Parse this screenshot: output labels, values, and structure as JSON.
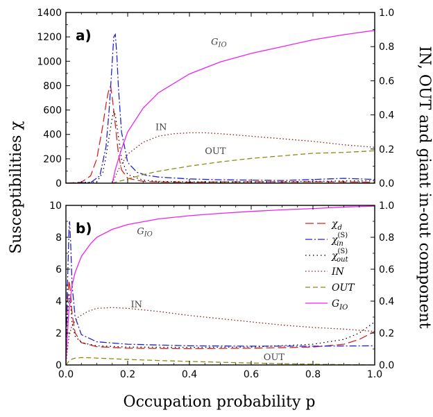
{
  "chart_data": [
    {
      "type": "line",
      "panel_label": "a)",
      "xlim": [
        0,
        1
      ],
      "ylim": [
        0,
        1400
      ],
      "y2lim": [
        0,
        1
      ],
      "grid": false,
      "x_ticks": [
        "0.0",
        "0.2",
        "0.4",
        "0.6",
        "0.8",
        "1.0"
      ],
      "y_ticks": [
        "0",
        "200",
        "400",
        "600",
        "800",
        "1000",
        "1200",
        "1400"
      ],
      "y2_ticks": [
        "0.0",
        "0.2",
        "0.4",
        "0.6",
        "0.8",
        "1.0"
      ],
      "annotations": [
        {
          "text": "G",
          "sub": "IO",
          "x": 0.47,
          "y": 0.81
        },
        {
          "text": "IN",
          "x": 0.29,
          "y": 0.31
        },
        {
          "text": "OUT",
          "x": 0.45,
          "y": 0.17
        }
      ],
      "series": [
        {
          "key": "chi_d",
          "axis": "left",
          "color": "#d62020",
          "dash": "12,5",
          "x": [
            0,
            0.05,
            0.08,
            0.1,
            0.12,
            0.13,
            0.14,
            0.145,
            0.15,
            0.16,
            0.17,
            0.18,
            0.2,
            0.25,
            0.3,
            0.4,
            0.5,
            0.6,
            0.7,
            0.8,
            0.9,
            1.0
          ],
          "y": [
            0,
            8,
            60,
            200,
            480,
            650,
            780,
            795,
            700,
            480,
            240,
            110,
            40,
            15,
            10,
            8,
            10,
            12,
            10,
            12,
            10,
            8
          ]
        },
        {
          "key": "chi_in",
          "axis": "left",
          "color": "#2020d0",
          "dash": "10,3,2,3",
          "x": [
            0,
            0.08,
            0.11,
            0.13,
            0.14,
            0.15,
            0.155,
            0.16,
            0.165,
            0.17,
            0.18,
            0.2,
            0.23,
            0.26,
            0.3,
            0.4,
            0.5,
            0.6,
            0.7,
            0.8,
            0.9,
            1.0
          ],
          "y": [
            0,
            5,
            60,
            300,
            600,
            1000,
            1200,
            1220,
            1050,
            780,
            420,
            170,
            90,
            65,
            50,
            35,
            28,
            25,
            22,
            30,
            40,
            30
          ]
        },
        {
          "key": "chi_out",
          "axis": "left",
          "color": "#000000",
          "dash": "1.5,4",
          "x": [
            0,
            0.1,
            0.12,
            0.13,
            0.14,
            0.15,
            0.155,
            0.16,
            0.17,
            0.18,
            0.2,
            0.25,
            0.3,
            0.4,
            0.5,
            0.6,
            0.7,
            0.8,
            0.9,
            1.0
          ],
          "y": [
            0,
            10,
            90,
            220,
            380,
            540,
            590,
            560,
            380,
            200,
            70,
            25,
            15,
            10,
            10,
            10,
            12,
            15,
            18,
            20
          ]
        },
        {
          "key": "IN",
          "axis": "right",
          "color": "#8b1a1a",
          "dash": "1.5,3",
          "x": [
            0.15,
            0.17,
            0.2,
            0.25,
            0.3,
            0.35,
            0.4,
            0.45,
            0.5,
            0.6,
            0.7,
            0.8,
            0.9,
            1.0
          ],
          "y": [
            0.0,
            0.08,
            0.17,
            0.24,
            0.275,
            0.29,
            0.295,
            0.295,
            0.29,
            0.275,
            0.26,
            0.245,
            0.225,
            0.21
          ]
        },
        {
          "key": "OUT",
          "axis": "right",
          "color": "#8a8a10",
          "dash": "7,4",
          "x": [
            0.15,
            0.2,
            0.25,
            0.3,
            0.4,
            0.5,
            0.6,
            0.7,
            0.8,
            0.9,
            1.0
          ],
          "y": [
            0.0,
            0.025,
            0.05,
            0.07,
            0.1,
            0.125,
            0.145,
            0.16,
            0.175,
            0.18,
            0.19
          ]
        },
        {
          "key": "G_IO",
          "axis": "right",
          "color": "#ee22ee",
          "dash": "",
          "x": [
            0.15,
            0.16,
            0.18,
            0.2,
            0.25,
            0.3,
            0.4,
            0.5,
            0.6,
            0.7,
            0.8,
            0.9,
            1.0
          ],
          "y": [
            0.0,
            0.08,
            0.2,
            0.3,
            0.44,
            0.53,
            0.64,
            0.71,
            0.76,
            0.8,
            0.84,
            0.87,
            0.895
          ]
        }
      ]
    },
    {
      "type": "line",
      "panel_label": "b)",
      "xlim": [
        0,
        1
      ],
      "ylim": [
        0,
        10
      ],
      "y2lim": [
        0,
        1
      ],
      "grid": false,
      "x_ticks": [
        "0.0",
        "0.2",
        "0.4",
        "0.6",
        "0.8",
        "1.0"
      ],
      "y_ticks": [
        "0",
        "2",
        "4",
        "6",
        "8",
        "10"
      ],
      "y2_ticks": [
        "0.0",
        "0.2",
        "0.4",
        "0.6",
        "0.8",
        "1.0"
      ],
      "annotations": [
        {
          "text": "G",
          "sub": "IO",
          "x": 0.23,
          "y": 0.82
        },
        {
          "text": "IN",
          "x": 0.21,
          "y": 0.36
        },
        {
          "text": "OUT",
          "x": 0.64,
          "y": 0.03
        }
      ],
      "legend": {
        "position": "top-right",
        "entries": [
          {
            "key": "chi_d",
            "label": "χ",
            "sub": "d",
            "sup": ""
          },
          {
            "key": "chi_in",
            "label": "χ",
            "sub": "in",
            "sup": "(S)"
          },
          {
            "key": "chi_out",
            "label": "χ",
            "sub": "out",
            "sup": "(S)"
          },
          {
            "key": "IN",
            "label": "IN",
            "sub": "",
            "sup": ""
          },
          {
            "key": "OUT",
            "label": "OUT",
            "sub": "",
            "sup": ""
          },
          {
            "key": "G_IO",
            "label": "G",
            "sub": "IO",
            "sup": ""
          }
        ]
      },
      "series": [
        {
          "key": "chi_d",
          "axis": "left",
          "color": "#d62020",
          "dash": "12,5",
          "x": [
            0,
            0.005,
            0.01,
            0.015,
            0.02,
            0.03,
            0.05,
            0.1,
            0.2,
            0.4,
            0.6,
            0.8,
            0.9,
            0.95,
            1.0
          ],
          "y": [
            1.0,
            4.0,
            5.3,
            4.5,
            3.2,
            2.0,
            1.4,
            1.15,
            1.05,
            1.02,
            1.05,
            1.12,
            1.3,
            1.6,
            2.1
          ]
        },
        {
          "key": "chi_in",
          "axis": "left",
          "color": "#2020d0",
          "dash": "10,3,2,3",
          "x": [
            0,
            0.005,
            0.01,
            0.012,
            0.015,
            0.02,
            0.03,
            0.05,
            0.1,
            0.2,
            0.4,
            0.6,
            0.8,
            1.0
          ],
          "y": [
            1.0,
            5.0,
            8.6,
            9.0,
            7.8,
            5.0,
            3.0,
            1.9,
            1.45,
            1.3,
            1.2,
            1.18,
            1.18,
            1.2
          ]
        },
        {
          "key": "chi_out",
          "axis": "left",
          "color": "#000000",
          "dash": "1.5,4",
          "x": [
            0,
            0.005,
            0.01,
            0.015,
            0.02,
            0.03,
            0.05,
            0.1,
            0.2,
            0.4,
            0.6,
            0.8,
            0.9,
            0.95,
            1.0
          ],
          "y": [
            1.0,
            3.0,
            4.5,
            3.8,
            2.6,
            1.8,
            1.4,
            1.2,
            1.12,
            1.1,
            1.12,
            1.3,
            1.6,
            2.0,
            2.7
          ]
        },
        {
          "key": "IN",
          "axis": "right",
          "color": "#8b1a1a",
          "dash": "1.5,3",
          "x": [
            0,
            0.005,
            0.01,
            0.02,
            0.04,
            0.07,
            0.1,
            0.15,
            0.2,
            0.3,
            0.4,
            0.5,
            0.6,
            0.7,
            0.8,
            0.9,
            1.0
          ],
          "y": [
            0.0,
            0.1,
            0.18,
            0.25,
            0.3,
            0.335,
            0.355,
            0.36,
            0.355,
            0.335,
            0.31,
            0.29,
            0.27,
            0.25,
            0.235,
            0.225,
            0.21
          ]
        },
        {
          "key": "OUT",
          "axis": "right",
          "color": "#8a8a10",
          "dash": "7,4",
          "x": [
            0,
            0.01,
            0.02,
            0.03,
            0.05,
            0.08,
            0.1,
            0.2,
            0.3,
            0.4,
            0.5,
            0.6,
            0.7,
            0.8,
            0.9,
            1.0
          ],
          "y": [
            0.0,
            0.025,
            0.037,
            0.043,
            0.046,
            0.045,
            0.043,
            0.035,
            0.028,
            0.022,
            0.017,
            0.012,
            0.008,
            0.005,
            0.002,
            0.0
          ]
        },
        {
          "key": "G_IO",
          "axis": "right",
          "color": "#ee22ee",
          "dash": "",
          "x": [
            0,
            0.005,
            0.01,
            0.02,
            0.03,
            0.05,
            0.08,
            0.1,
            0.15,
            0.2,
            0.3,
            0.4,
            0.5,
            0.6,
            0.7,
            0.8,
            0.9,
            1.0
          ],
          "y": [
            0.0,
            0.2,
            0.35,
            0.5,
            0.58,
            0.68,
            0.76,
            0.8,
            0.85,
            0.88,
            0.915,
            0.935,
            0.95,
            0.962,
            0.972,
            0.98,
            0.99,
            0.995
          ]
        }
      ]
    }
  ],
  "axis_text": {
    "ylabel_left": "Susceptibilities χ",
    "ylabel_right": "IN, OUT and giant in-out component",
    "xlabel": "Occupation probability p"
  }
}
